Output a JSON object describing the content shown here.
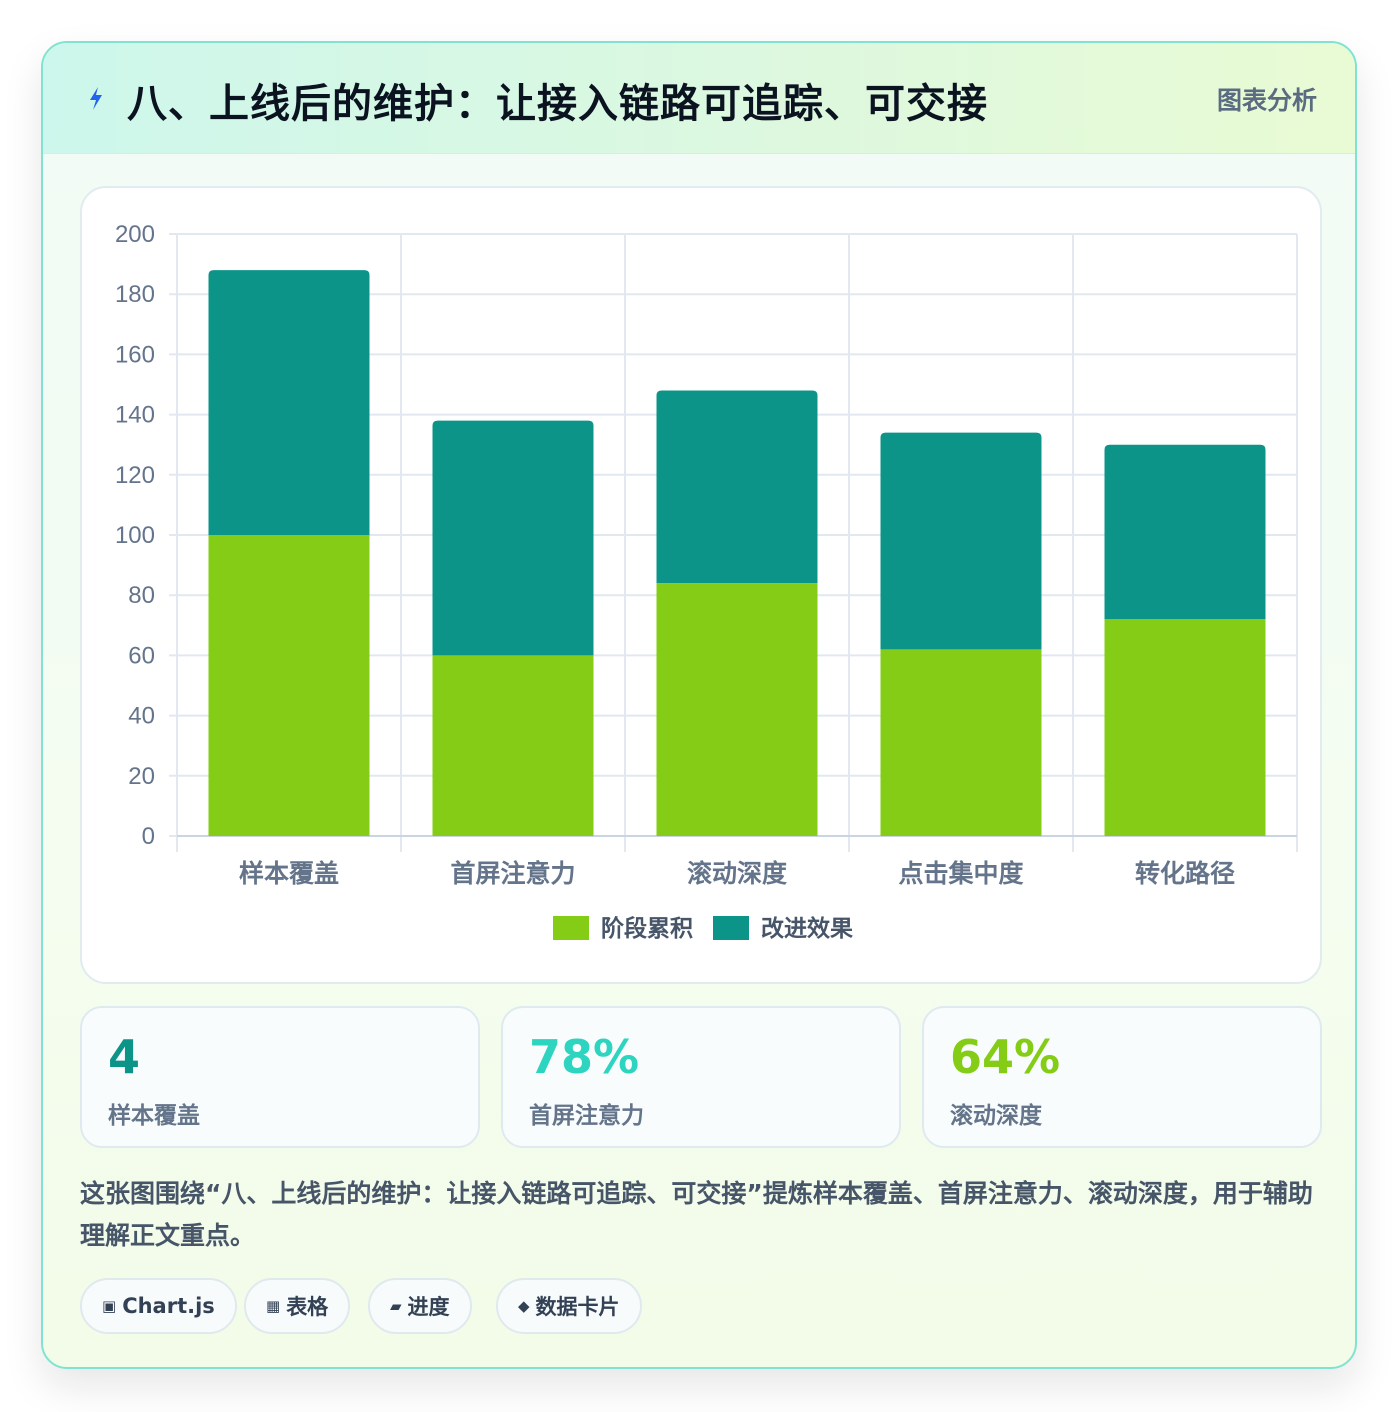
{
  "header": {
    "title": "八、上线后的维护：让接入链路可追踪、可交接",
    "tag": "图表分析",
    "icon": "lightning-icon"
  },
  "chart_data": {
    "type": "bar",
    "stacked": true,
    "categories": [
      "样本覆盖",
      "首屏注意力",
      "滚动深度",
      "点击集中度",
      "转化路径"
    ],
    "series": [
      {
        "name": "阶段累积",
        "color": "#84cc16",
        "values": [
          100,
          60,
          84,
          62,
          72
        ]
      },
      {
        "name": "改进效果",
        "color": "#0d9488",
        "values": [
          88,
          78,
          64,
          72,
          58
        ]
      }
    ],
    "yticks": [
      0,
      20,
      40,
      60,
      80,
      100,
      120,
      140,
      160,
      180,
      200
    ],
    "ylim": [
      0,
      200
    ],
    "grid": true,
    "legend": "bottom"
  },
  "stats": [
    {
      "value": "4",
      "label": "样本覆盖",
      "color": "#0d9488"
    },
    {
      "value": "78%",
      "label": "首屏注意力",
      "color": "#2dd4bf"
    },
    {
      "value": "64%",
      "label": "滚动深度",
      "color": "#84cc16"
    }
  ],
  "description": "这张图围绕“八、上线后的维护：让接入链路可追踪、可交接”提炼样本覆盖、首屏注意力、滚动深度，用于辅助理解正文重点。",
  "chips": [
    {
      "icon": "▣",
      "label": "Chart.js"
    },
    {
      "icon": "▦",
      "label": "表格"
    },
    {
      "icon": "▰",
      "label": "进度"
    },
    {
      "icon": "◆",
      "label": "数据卡片"
    }
  ]
}
